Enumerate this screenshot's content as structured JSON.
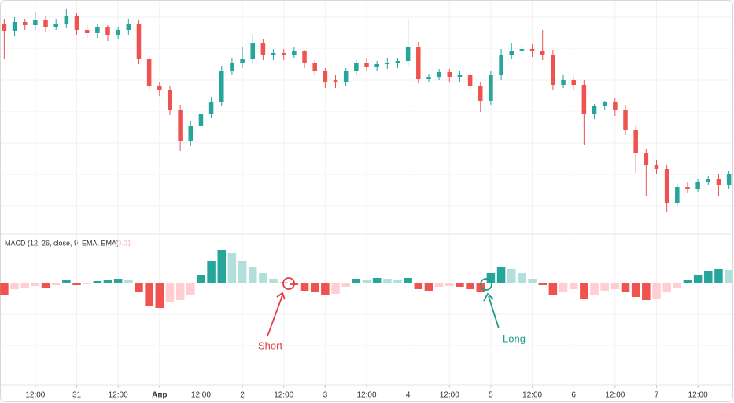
{
  "chart_data": [
    {
      "type": "candlestick",
      "x": [
        3,
        6,
        9,
        12,
        15,
        18,
        21,
        24,
        27,
        30,
        33,
        36,
        39,
        42,
        45,
        48,
        51,
        54,
        57,
        60,
        63,
        66,
        69,
        72,
        75,
        78,
        81,
        84,
        87,
        90,
        93,
        96,
        99,
        102,
        105,
        108,
        111,
        114,
        117,
        120,
        123,
        126,
        129,
        132,
        135,
        138,
        141,
        144,
        147,
        150,
        153,
        156,
        159,
        162,
        165,
        168,
        171,
        174,
        177,
        180,
        183,
        186,
        189,
        192,
        195,
        198,
        201,
        204,
        207,
        210,
        213
      ],
      "open": [
        270,
        260,
        272,
        268,
        275,
        265,
        270,
        280,
        262,
        258,
        265,
        255,
        262,
        270,
        225,
        190,
        185,
        160,
        120,
        140,
        155,
        170,
        210,
        220,
        225,
        245,
        230,
        232,
        230,
        235,
        220,
        210,
        198,
        195,
        210,
        220,
        215,
        218,
        220,
        222,
        240,
        200,
        202,
        208,
        202,
        205,
        190,
        172,
        205,
        230,
        235,
        238,
        235,
        230,
        192,
        198,
        192,
        155,
        165,
        170,
        160,
        135,
        105,
        90,
        85,
        42,
        62,
        60,
        68,
        72,
        65
      ],
      "high": [
        276,
        278,
        276,
        285,
        280,
        276,
        288,
        284,
        268,
        270,
        268,
        266,
        276,
        274,
        230,
        196,
        190,
        166,
        146,
        160,
        176,
        216,
        226,
        240,
        255,
        250,
        238,
        238,
        240,
        236,
        224,
        214,
        204,
        214,
        224,
        226,
        222,
        226,
        226,
        275,
        246,
        206,
        212,
        212,
        210,
        210,
        196,
        210,
        238,
        245,
        244,
        244,
        262,
        236,
        204,
        202,
        198,
        168,
        172,
        175,
        166,
        140,
        110,
        96,
        90,
        66,
        68,
        72,
        76,
        78,
        82
      ],
      "low": [
        225,
        254,
        262,
        262,
        259,
        262,
        264,
        256,
        252,
        252,
        248,
        250,
        255,
        218,
        184,
        178,
        154,
        108,
        114,
        134,
        150,
        165,
        205,
        214,
        220,
        224,
        224,
        224,
        226,
        214,
        204,
        188,
        188,
        190,
        204,
        210,
        210,
        212,
        214,
        216,
        194,
        195,
        198,
        196,
        196,
        184,
        158,
        166,
        198,
        225,
        230,
        228,
        224,
        186,
        188,
        186,
        115,
        148,
        160,
        152,
        128,
        80,
        50,
        78,
        30,
        38,
        54,
        56,
        64,
        50,
        60
      ],
      "close": [
        260,
        272,
        268,
        275,
        265,
        270,
        280,
        262,
        258,
        265,
        255,
        262,
        270,
        225,
        190,
        185,
        160,
        120,
        140,
        155,
        170,
        210,
        220,
        225,
        245,
        230,
        232,
        230,
        235,
        220,
        210,
        195,
        195,
        210,
        220,
        215,
        218,
        220,
        222,
        240,
        200,
        202,
        208,
        202,
        205,
        190,
        172,
        205,
        230,
        235,
        238,
        235,
        230,
        192,
        198,
        192,
        155,
        165,
        170,
        160,
        135,
        105,
        90,
        85,
        42,
        62,
        60,
        68,
        72,
        65,
        78
      ],
      "up_color": "#26a69a",
      "down_color": "#ef5350",
      "xlim": [
        2,
        214
      ],
      "ylim": [
        0,
        300
      ]
    },
    {
      "type": "bar",
      "title": "MACD (12, 26, close, 9, EMA, EMA)",
      "subtitle": "−0.01",
      "x": [
        3,
        6,
        9,
        12,
        15,
        18,
        21,
        24,
        27,
        30,
        33,
        36,
        39,
        42,
        45,
        48,
        51,
        54,
        57,
        60,
        63,
        66,
        69,
        72,
        75,
        78,
        81,
        84,
        87,
        90,
        93,
        96,
        99,
        102,
        105,
        108,
        111,
        114,
        117,
        120,
        123,
        126,
        129,
        132,
        135,
        138,
        141,
        144,
        147,
        150,
        153,
        156,
        159,
        162,
        165,
        168,
        171,
        174,
        177,
        180,
        183,
        186,
        189,
        192,
        195,
        198,
        201,
        204,
        207,
        210,
        213
      ],
      "values": [
        -15,
        -8,
        -6,
        -4,
        -6,
        -3,
        3,
        -3,
        -2,
        2,
        3,
        5,
        3,
        -12,
        -30,
        -32,
        -25,
        -22,
        -15,
        10,
        28,
        42,
        38,
        28,
        20,
        12,
        5,
        1,
        -3,
        -10,
        -12,
        -15,
        -14,
        -5,
        5,
        4,
        6,
        5,
        3,
        6,
        -8,
        -10,
        -5,
        -4,
        -5,
        -8,
        -12,
        12,
        20,
        18,
        12,
        5,
        -3,
        -15,
        -12,
        -8,
        -20,
        -15,
        -10,
        -8,
        -12,
        -18,
        -22,
        -20,
        -12,
        -6,
        4,
        10,
        15,
        18,
        16
      ],
      "up_color": "#26a69a",
      "up_fading_color": "#b2dfdb",
      "down_color": "#ef5350",
      "down_fading_color": "#ffcdd2",
      "xlim": [
        2,
        214
      ],
      "ylim": [
        -130,
        60
      ],
      "xticks": [
        {
          "value": 12,
          "label": "12:00"
        },
        {
          "value": 24,
          "label": "31"
        },
        {
          "value": 36,
          "label": "12:00"
        },
        {
          "value": 48,
          "label": "Апр"
        },
        {
          "value": 60,
          "label": "12:00"
        },
        {
          "value": 72,
          "label": "2"
        },
        {
          "value": 84,
          "label": "12:00"
        },
        {
          "value": 96,
          "label": "3"
        },
        {
          "value": 108,
          "label": "12:00"
        },
        {
          "value": 120,
          "label": "4"
        },
        {
          "value": 132,
          "label": "12:00"
        },
        {
          "value": 144,
          "label": "5"
        },
        {
          "value": 156,
          "label": "12:00"
        },
        {
          "value": 168,
          "label": "6"
        },
        {
          "value": 180,
          "label": "12:00"
        },
        {
          "value": 192,
          "label": "7"
        },
        {
          "value": 204,
          "label": "12:00"
        }
      ],
      "annotations": [
        "Short",
        "Long"
      ]
    }
  ]
}
